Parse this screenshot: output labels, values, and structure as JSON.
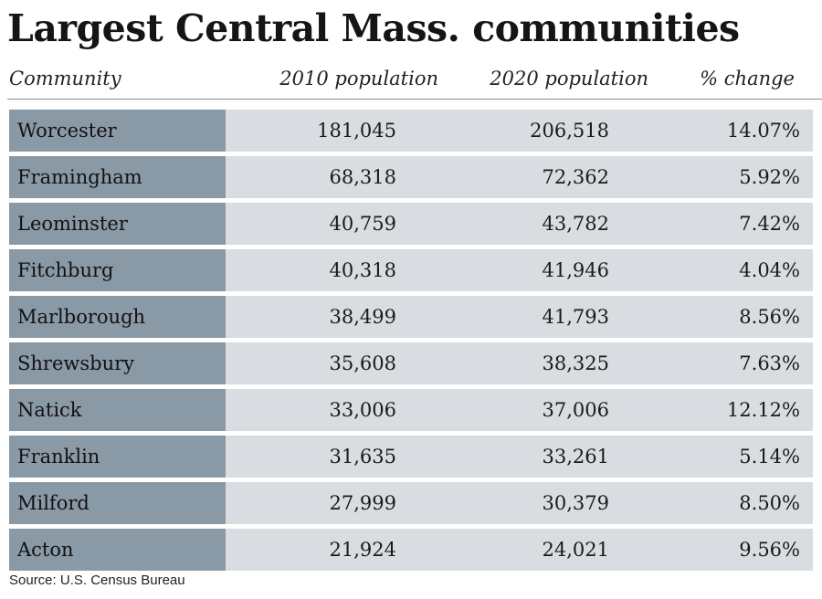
{
  "title": "Largest Central Mass. communities",
  "header": {
    "community": "Community",
    "pop2010": "2010 population",
    "pop2020": "2020 population",
    "change": "% change"
  },
  "source": "Source: U.S. Census Bureau",
  "colors": {
    "name_cell": "#8a99a6",
    "data_cell": "#d9dde1"
  },
  "chart_data": {
    "type": "table",
    "title": "Largest Central Mass. communities",
    "columns": [
      "Community",
      "2010 population",
      "2020 population",
      "% change"
    ],
    "rows": [
      {
        "community": "Worcester",
        "pop2010": "181,045",
        "pop2020": "206,518",
        "change": "14.07%"
      },
      {
        "community": "Framingham",
        "pop2010": "68,318",
        "pop2020": "72,362",
        "change": "5.92%"
      },
      {
        "community": "Leominster",
        "pop2010": "40,759",
        "pop2020": "43,782",
        "change": "7.42%"
      },
      {
        "community": "Fitchburg",
        "pop2010": "40,318",
        "pop2020": "41,946",
        "change": "4.04%"
      },
      {
        "community": "Marlborough",
        "pop2010": "38,499",
        "pop2020": "41,793",
        "change": "8.56%"
      },
      {
        "community": "Shrewsbury",
        "pop2010": "35,608",
        "pop2020": "38,325",
        "change": "7.63%"
      },
      {
        "community": "Natick",
        "pop2010": "33,006",
        "pop2020": "37,006",
        "change": "12.12%"
      },
      {
        "community": "Franklin",
        "pop2010": "31,635",
        "pop2020": "33,261",
        "change": "5.14%"
      },
      {
        "community": "Milford",
        "pop2010": "27,999",
        "pop2020": "30,379",
        "change": "8.50%"
      },
      {
        "community": "Acton",
        "pop2010": "21,924",
        "pop2020": "24,021",
        "change": "9.56%"
      }
    ],
    "source": "Source: U.S. Census Bureau"
  }
}
